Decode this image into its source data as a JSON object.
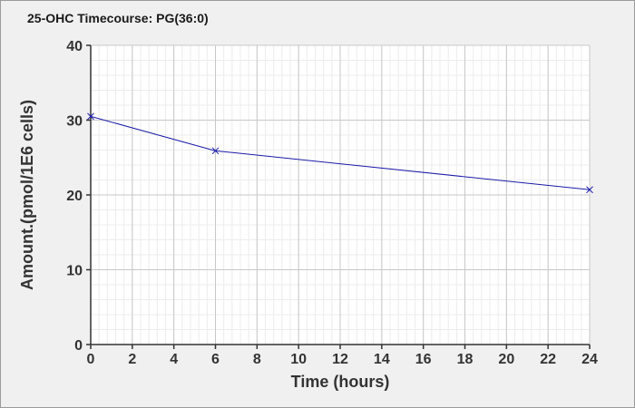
{
  "chart_data": {
    "type": "line",
    "title": "25-OHC Timecourse: PG(36:0)",
    "xlabel": "Time (hours)",
    "ylabel": "Amount.(pmol/1E6 cells)",
    "xlim": [
      0,
      24
    ],
    "ylim": [
      0,
      40
    ],
    "x_ticks": [
      0,
      2,
      4,
      6,
      8,
      10,
      12,
      14,
      16,
      18,
      20,
      22,
      24
    ],
    "y_ticks": [
      0,
      10,
      20,
      30,
      40
    ],
    "grid": true,
    "minor_grid": true,
    "marker": "x",
    "series": [
      {
        "color": "#1a1aa8",
        "x": [
          0,
          6,
          24
        ],
        "y": [
          30.5,
          25.9,
          20.7
        ]
      }
    ]
  },
  "colors": {
    "background": "#f0f0f0",
    "plot_area": "#ffffff",
    "major_grid": "#c8c8c8",
    "minor_grid": "#ececec",
    "axis": "#333333"
  }
}
